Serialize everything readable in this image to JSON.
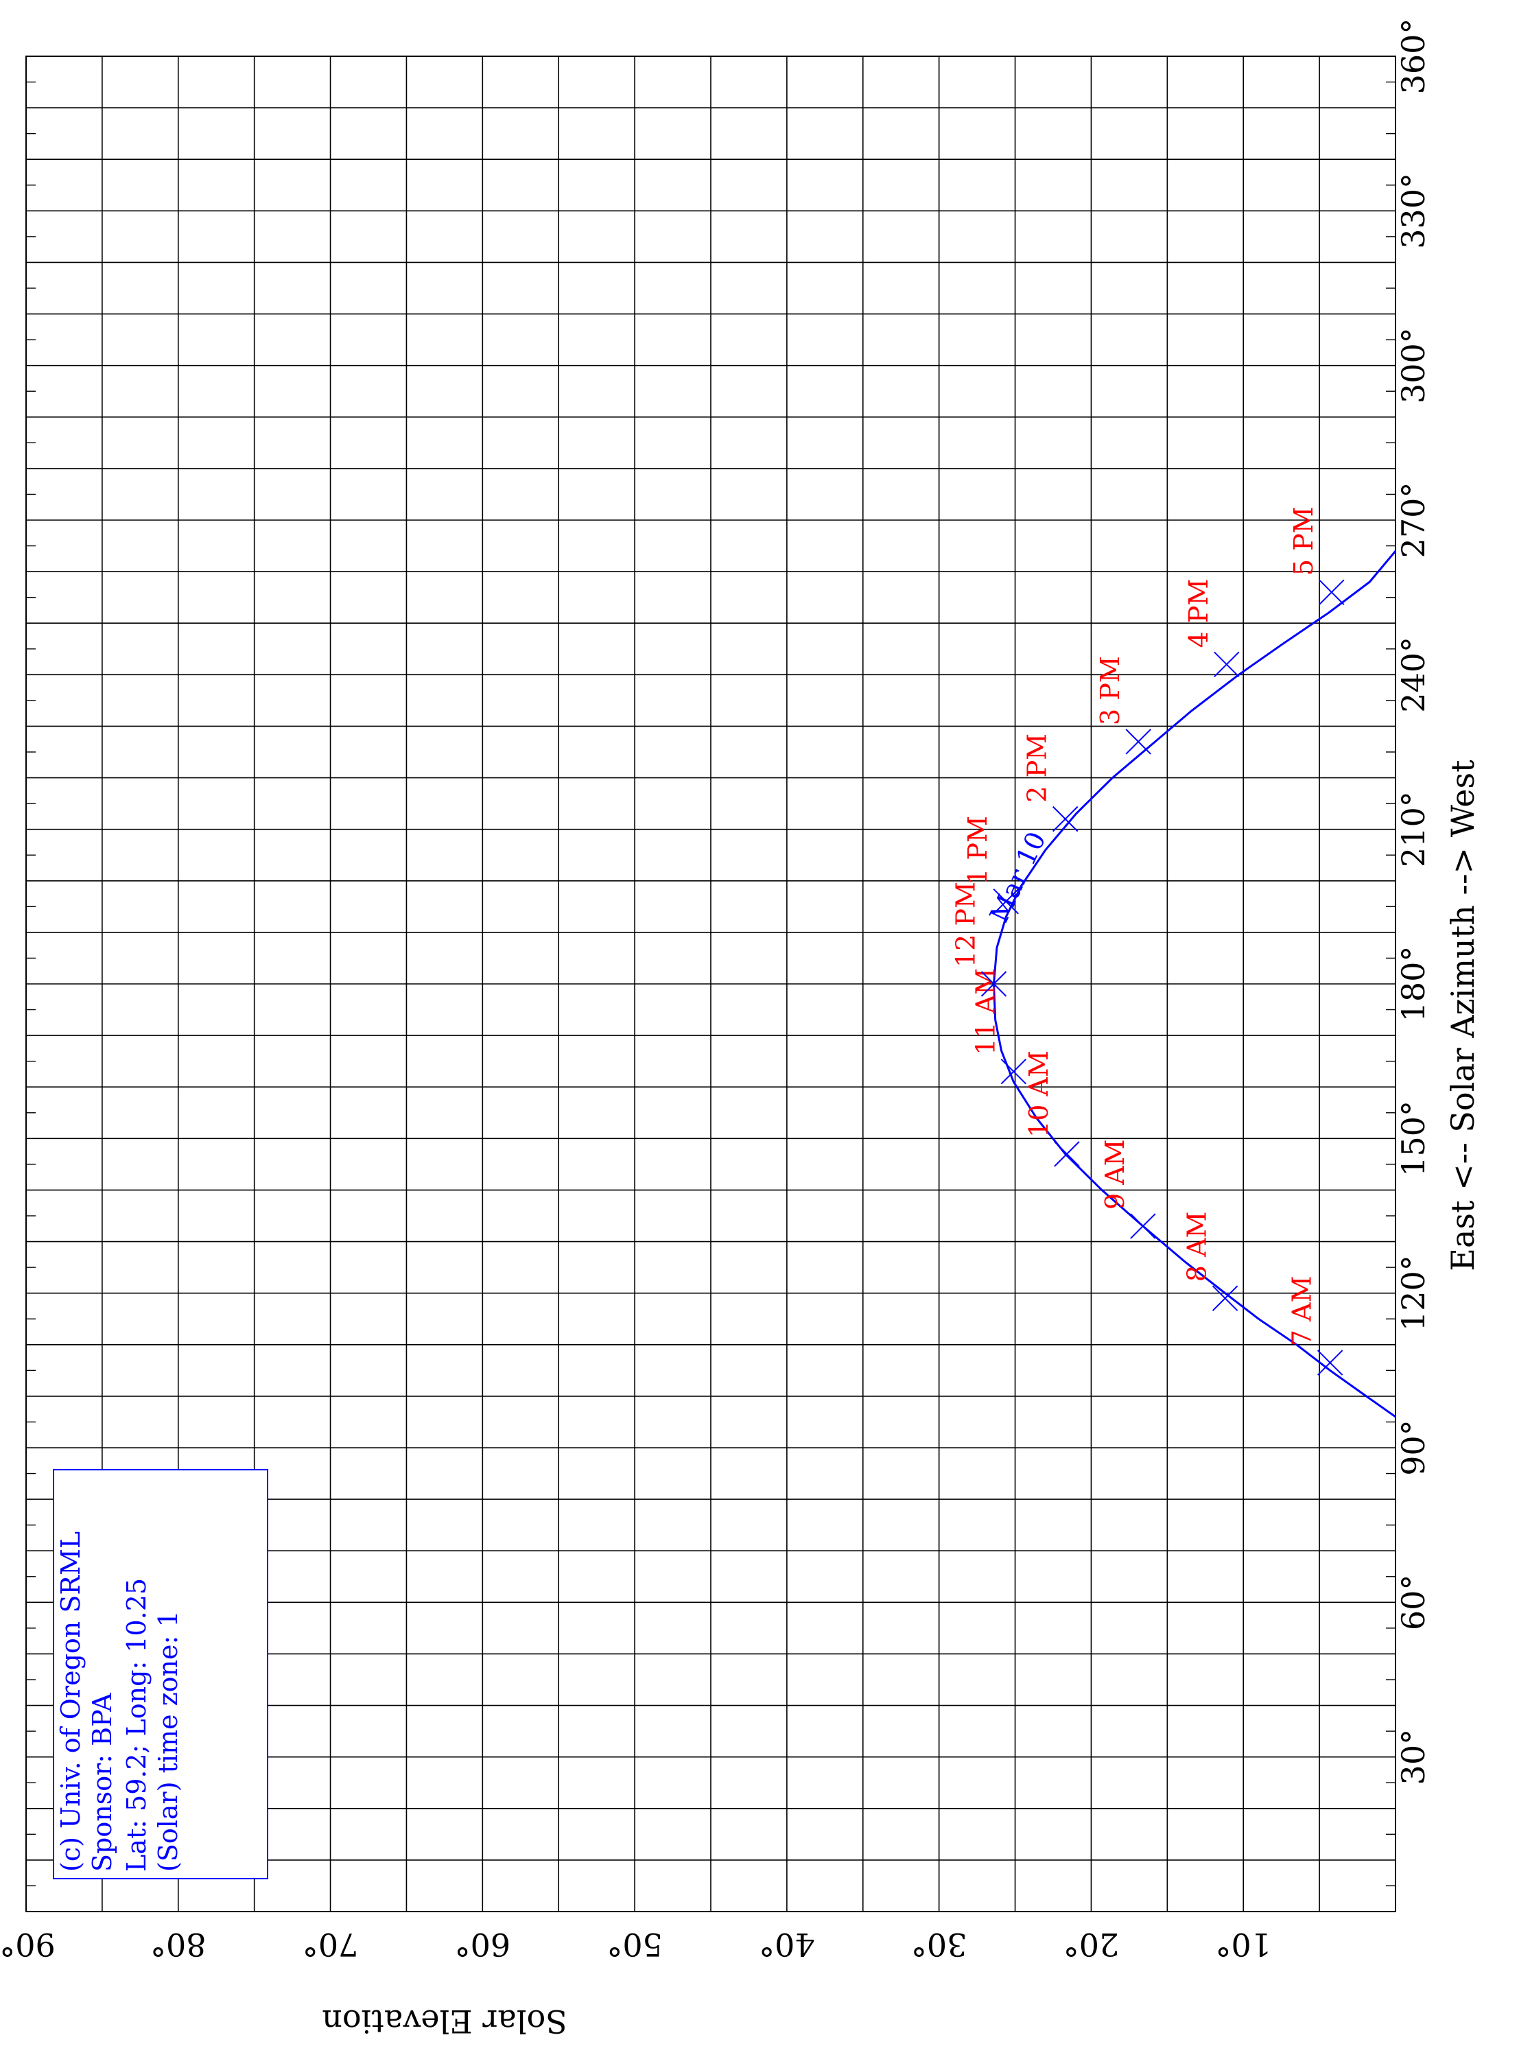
{
  "chart_data": {
    "type": "line",
    "xlabel": "East <-- Solar Azimuth --> West",
    "ylabel": "Solar Elevation",
    "xlim": [
      0,
      360
    ],
    "ylim": [
      0,
      90
    ],
    "x_tick_step": 30,
    "y_tick_step": 10,
    "x_ticks": [
      "30°",
      "60°",
      "90°",
      "120°",
      "150°",
      "180°",
      "210°",
      "240°",
      "270°",
      "300°",
      "330°",
      "360°"
    ],
    "y_ticks": [
      "10°",
      "20°",
      "30°",
      "40°",
      "50°",
      "60°",
      "70°",
      "80°",
      "90°"
    ],
    "grid": true,
    "orientation": "rotated 90° (azimuth runs up the page, elevation across)",
    "series": [
      {
        "name": "Mar 10",
        "color": "#0000ff",
        "x": [
          96,
          101,
          105,
          110,
          115,
          120,
          126,
          133,
          140,
          147,
          154,
          161,
          167,
          173,
          180,
          187,
          193,
          199,
          206,
          213,
          220,
          227,
          233,
          240,
          246,
          252,
          258,
          264
        ],
        "y": [
          0,
          2.4,
          4.3,
          6.5,
          9,
          11.2,
          13.8,
          16.6,
          19.3,
          21.7,
          23.6,
          25.1,
          25.9,
          26.3,
          26.4,
          26.2,
          25.6,
          24.6,
          23,
          21,
          18.6,
          15.8,
          13.4,
          10.3,
          7.4,
          4.4,
          1.7,
          0
        ]
      }
    ],
    "hour_markers": {
      "color": "#ff0000",
      "points": [
        {
          "label": "7 AM",
          "x": 106.5,
          "y": 4.3
        },
        {
          "label": "8 AM",
          "x": 119,
          "y": 11.2
        },
        {
          "label": "9 AM",
          "x": 133,
          "y": 16.6
        },
        {
          "label": "10 AM",
          "x": 147,
          "y": 21.6
        },
        {
          "label": "11 AM",
          "x": 163,
          "y": 25.1
        },
        {
          "label": "12 PM",
          "x": 180,
          "y": 26.4
        },
        {
          "label": "1 PM",
          "x": 196,
          "y": 25.6
        },
        {
          "label": "2 PM",
          "x": 212,
          "y": 21.7
        },
        {
          "label": "3 PM",
          "x": 227,
          "y": 16.9
        },
        {
          "label": "4 PM",
          "x": 242,
          "y": 11.1
        },
        {
          "label": "5 PM",
          "x": 256,
          "y": 4.2
        }
      ]
    },
    "annotations": [
      {
        "text": "Mar 10",
        "x": 200,
        "y": 24.3,
        "color": "#0000ff"
      }
    ],
    "info_box": {
      "lines": [
        "(c) Univ. of Oregon SRML",
        "Sponsor: BPA",
        "Lat: 59.2; Long: 10.25",
        "(Solar) time zone: 1"
      ],
      "color": "#0000ff"
    }
  }
}
